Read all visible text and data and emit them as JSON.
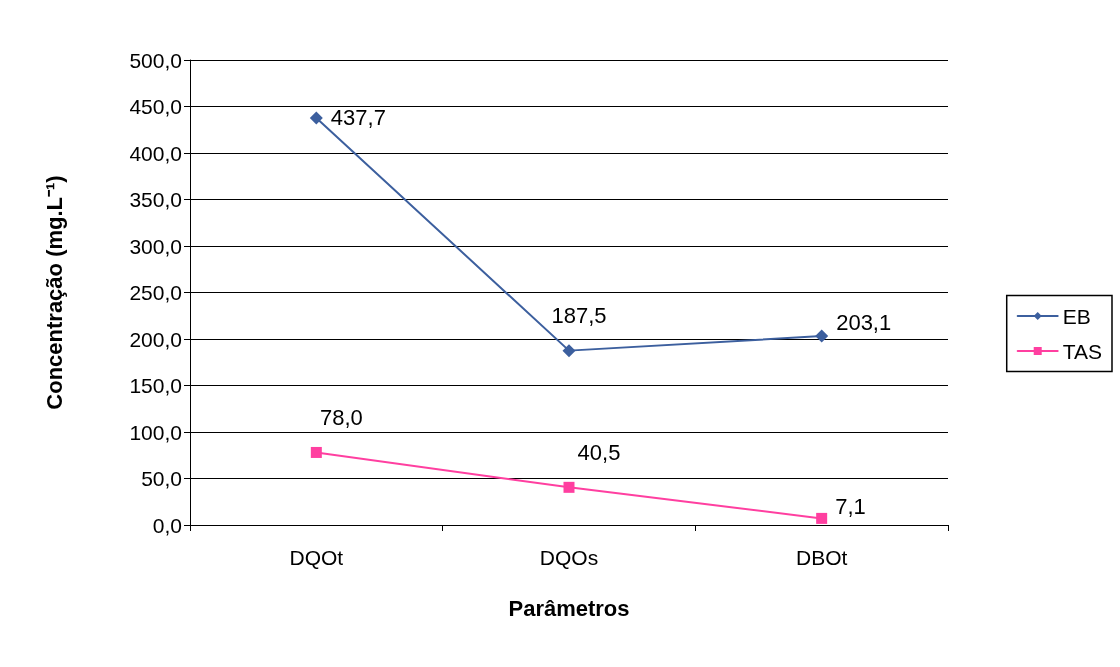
{
  "chart_data": {
    "type": "line",
    "xlabel": "Parâmetros",
    "ylabel": "Concentração (mg.L⁻¹)",
    "categories": [
      "DQOt",
      "DQOs",
      "DBOt"
    ],
    "series": [
      {
        "name": "EB",
        "color": "#3c5f9e",
        "marker": "diamond",
        "values": [
          437.7,
          187.5,
          203.1
        ],
        "value_labels": [
          "437,7",
          "187,5",
          "203,1"
        ]
      },
      {
        "name": "TAS",
        "color": "#ff3fa0",
        "marker": "square",
        "values": [
          78.0,
          40.5,
          7.1
        ],
        "value_labels": [
          "78,0",
          "40,5",
          "7,1"
        ]
      }
    ],
    "ylim": [
      0,
      500
    ],
    "yticks": [
      {
        "value": 0,
        "label": "0,0"
      },
      {
        "value": 50,
        "label": "50,0"
      },
      {
        "value": 100,
        "label": "100,0"
      },
      {
        "value": 150,
        "label": "150,0"
      },
      {
        "value": 200,
        "label": "200,0"
      },
      {
        "value": 250,
        "label": "250,0"
      },
      {
        "value": 300,
        "label": "300,0"
      },
      {
        "value": 350,
        "label": "350,0"
      },
      {
        "value": 400,
        "label": "400,0"
      },
      {
        "value": 450,
        "label": "450,0"
      },
      {
        "value": 500,
        "label": "500,0"
      }
    ],
    "grid": "y",
    "legend": "right",
    "line_style": "solid"
  }
}
